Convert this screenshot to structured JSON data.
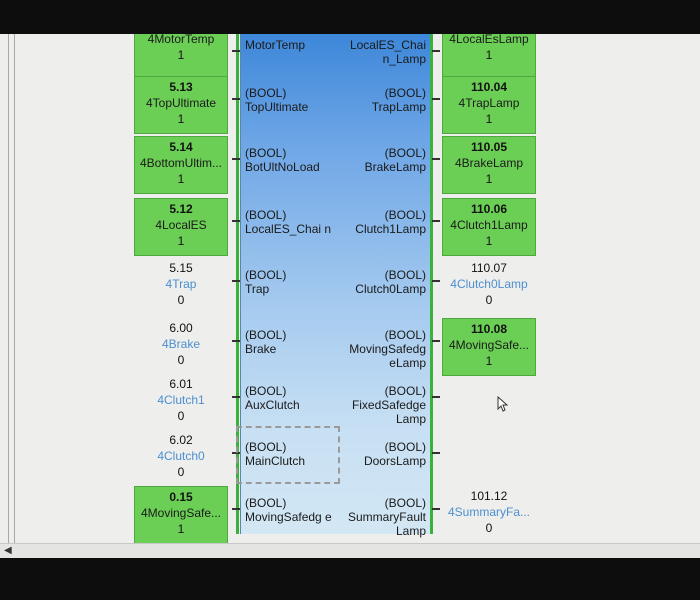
{
  "inputs_col": [
    {
      "addr": "",
      "name": "4MotorTemp",
      "val": "1",
      "on": true,
      "top": 0
    },
    {
      "addr": "5.13",
      "name": "4TopUltimate",
      "val": "1",
      "on": true
    },
    {
      "addr": "5.14",
      "name": "4BottomUltim...",
      "val": "1",
      "on": true
    },
    {
      "addr": "5.12",
      "name": "4LocalES",
      "val": "1",
      "on": true
    },
    {
      "addr": "5.15",
      "name": "4Trap",
      "val": "0",
      "on": false
    },
    {
      "addr": "6.00",
      "name": "4Brake",
      "val": "0",
      "on": false
    },
    {
      "addr": "6.01",
      "name": "4Clutch1",
      "val": "0",
      "on": false
    },
    {
      "addr": "6.02",
      "name": "4Clutch0",
      "val": "0",
      "on": false
    },
    {
      "addr": "0.15",
      "name": "4MovingSafe...",
      "val": "1",
      "on": true
    }
  ],
  "block_inputs": [
    {
      "type": "",
      "name": "MotorTemp"
    },
    {
      "type": "(BOOL)",
      "name": "TopUltimate"
    },
    {
      "type": "(BOOL)",
      "name": "BotUltNoLoad"
    },
    {
      "type": "(BOOL)",
      "name": "LocalES_Chai n"
    },
    {
      "type": "(BOOL)",
      "name": "Trap"
    },
    {
      "type": "(BOOL)",
      "name": "Brake"
    },
    {
      "type": "(BOOL)",
      "name": "AuxClutch"
    },
    {
      "type": "(BOOL)",
      "name": "MainClutch"
    },
    {
      "type": "(BOOL)",
      "name": "MovingSafedg e"
    }
  ],
  "block_outputs": [
    {
      "type": "",
      "name": "LocalES_Chai n_Lamp"
    },
    {
      "type": "(BOOL)",
      "name": "TrapLamp"
    },
    {
      "type": "(BOOL)",
      "name": "BrakeLamp"
    },
    {
      "type": "(BOOL)",
      "name": "Clutch1Lamp"
    },
    {
      "type": "(BOOL)",
      "name": "Clutch0Lamp"
    },
    {
      "type": "(BOOL)",
      "name": "MovingSafedg eLamp"
    },
    {
      "type": "(BOOL)",
      "name": "FixedSafedge Lamp"
    },
    {
      "type": "(BOOL)",
      "name": "DoorsLamp"
    },
    {
      "type": "(BOOL)",
      "name": "SummaryFault Lamp"
    }
  ],
  "outputs_col": [
    {
      "addr": "",
      "name": "4LocalEsLamp",
      "val": "1",
      "on": true
    },
    {
      "addr": "110.04",
      "name": "4TrapLamp",
      "val": "1",
      "on": true
    },
    {
      "addr": "110.05",
      "name": "4BrakeLamp",
      "val": "1",
      "on": true
    },
    {
      "addr": "110.06",
      "name": "4Clutch1Lamp",
      "val": "1",
      "on": true
    },
    {
      "addr": "110.07",
      "name": "4Clutch0Lamp",
      "val": "0",
      "on": false
    },
    {
      "addr": "110.08",
      "name": "4MovingSafe...",
      "val": "1",
      "on": true
    },
    {
      "addr": "",
      "name": "",
      "val": "",
      "on": false
    },
    {
      "addr": "",
      "name": "",
      "val": "",
      "on": false
    },
    {
      "addr": "101.12",
      "name": "4SummaryFa...",
      "val": "0",
      "on": false
    }
  ],
  "colors": {
    "active": "#6ccf55",
    "block_top": "#3d87d9",
    "rail": "#38b23a",
    "name_blue": "#4c8fd0"
  },
  "icons": {
    "scroll_left": "triangle-left-icon",
    "cursor": "mouse-pointer-icon"
  }
}
